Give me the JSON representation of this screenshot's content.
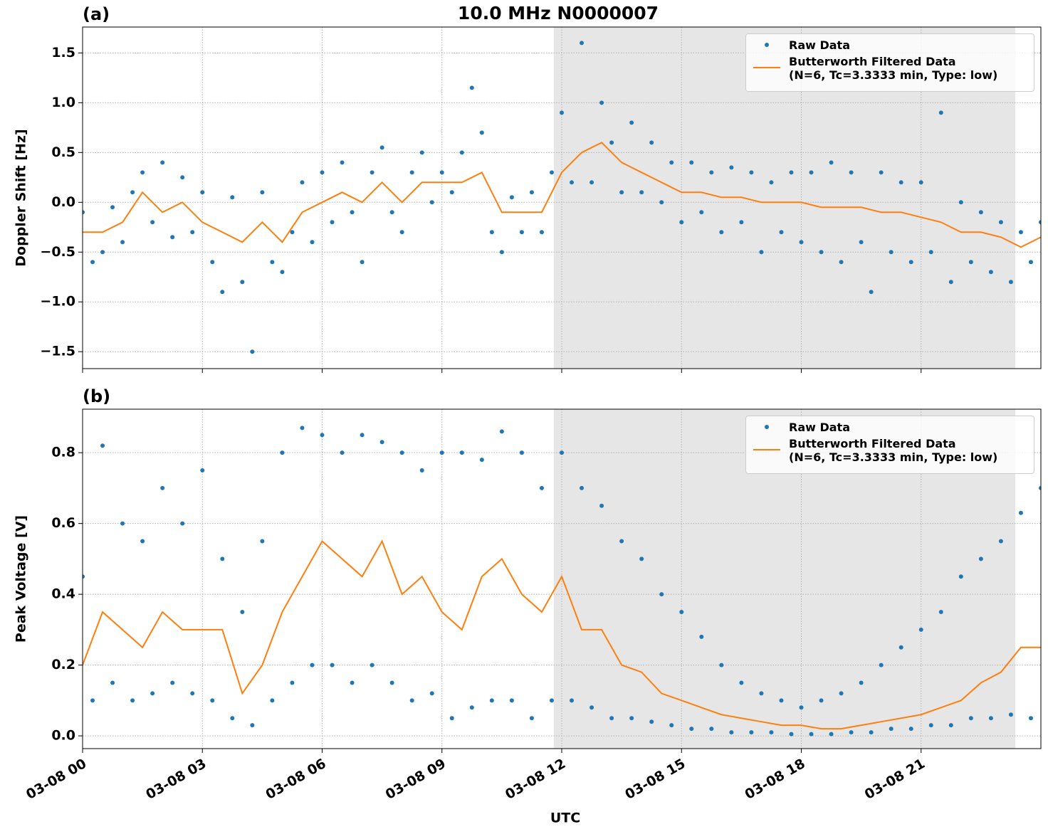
{
  "chart_data": [
    {
      "type": "line",
      "title": "10.0 MHz N0000007",
      "panel_label": "(a)",
      "ylabel": "Doppler Shift [Hz]",
      "xlim": [
        0,
        24
      ],
      "xticks": [
        0,
        3,
        6,
        9,
        12,
        15,
        18,
        21
      ],
      "ylim": [
        -1.67,
        1.76
      ],
      "yticks": [
        {
          "value": -1.5,
          "label": "−1.5"
        },
        {
          "value": -1.0,
          "label": "−1.0"
        },
        {
          "value": -0.5,
          "label": "−0.5"
        },
        {
          "value": 0.0,
          "label": "0.0"
        },
        {
          "value": 0.5,
          "label": "0.5"
        },
        {
          "value": 1.0,
          "label": "1.0"
        },
        {
          "value": 1.5,
          "label": "1.5"
        }
      ],
      "grid": true,
      "shade": [
        11.8,
        23.36
      ],
      "legend": "upper right",
      "series": [
        {
          "name": "Raw Data",
          "style": "points",
          "color": "#1f77b4",
          "x": [
            0,
            0.25,
            0.5,
            0.75,
            1,
            1.25,
            1.5,
            1.75,
            2,
            2.25,
            2.5,
            2.75,
            3,
            3.25,
            3.5,
            3.75,
            4,
            4.25,
            4.5,
            4.75,
            5,
            5.25,
            5.5,
            5.75,
            6,
            6.25,
            6.5,
            6.75,
            7,
            7.25,
            7.5,
            7.75,
            8,
            8.25,
            8.5,
            8.75,
            9,
            9.25,
            9.5,
            9.75,
            10,
            10.25,
            10.5,
            10.75,
            11,
            11.25,
            11.5,
            11.75,
            12,
            12.25,
            12.5,
            12.75,
            13,
            13.25,
            13.5,
            13.75,
            14,
            14.25,
            14.5,
            14.75,
            15,
            15.25,
            15.5,
            15.75,
            16,
            16.25,
            16.5,
            16.75,
            17,
            17.25,
            17.5,
            17.75,
            18,
            18.25,
            18.5,
            18.75,
            19,
            19.25,
            19.5,
            19.75,
            20,
            20.25,
            20.5,
            20.75,
            21,
            21.25,
            21.5,
            21.75,
            22,
            22.25,
            22.5,
            22.75,
            23,
            23.25,
            23.5,
            23.75,
            24
          ],
          "values": [
            -0.1,
            -0.6,
            -0.5,
            -0.05,
            -0.4,
            0.1,
            0.3,
            -0.2,
            0.4,
            -0.35,
            0.25,
            -0.3,
            0.1,
            -0.6,
            -0.9,
            0.05,
            -0.8,
            -1.5,
            0.1,
            -0.6,
            -0.7,
            -0.3,
            0.2,
            -0.4,
            0.3,
            -0.2,
            0.4,
            -0.1,
            -0.6,
            0.3,
            0.55,
            -0.1,
            -0.3,
            0.3,
            0.5,
            0.0,
            0.3,
            0.1,
            0.5,
            1.15,
            0.7,
            -0.3,
            -0.5,
            0.05,
            -0.3,
            0.1,
            -0.3,
            0.3,
            0.9,
            0.2,
            1.6,
            0.2,
            1.0,
            0.6,
            0.1,
            0.8,
            0.1,
            0.6,
            0.0,
            0.4,
            -0.2,
            0.4,
            -0.1,
            0.3,
            -0.3,
            0.35,
            -0.2,
            0.3,
            -0.5,
            0.2,
            -0.3,
            0.3,
            -0.4,
            0.3,
            -0.5,
            0.4,
            -0.6,
            0.3,
            -0.4,
            -0.9,
            0.3,
            -0.5,
            0.2,
            -0.6,
            0.2,
            -0.5,
            0.9,
            -0.8,
            0.0,
            -0.6,
            -0.1,
            -0.7,
            -0.2,
            -0.8,
            -0.3,
            -0.6,
            -0.2
          ]
        },
        {
          "name": "Butterworth Filtered Data\n(N=6, Tc=3.3333 min, Type: low)",
          "style": "line",
          "color": "#ff7f0e",
          "x": [
            0,
            0.5,
            1,
            1.5,
            2,
            2.5,
            3,
            3.5,
            4,
            4.5,
            5,
            5.5,
            6,
            6.5,
            7,
            7.5,
            8,
            8.5,
            9,
            9.5,
            10,
            10.5,
            11,
            11.5,
            12,
            12.5,
            13,
            13.5,
            14,
            14.5,
            15,
            15.5,
            16,
            16.5,
            17,
            17.5,
            18,
            18.5,
            19,
            19.5,
            20,
            20.5,
            21,
            21.5,
            22,
            22.5,
            23,
            23.5,
            24
          ],
          "values": [
            -0.3,
            -0.3,
            -0.2,
            0.1,
            -0.1,
            0.0,
            -0.2,
            -0.3,
            -0.4,
            -0.2,
            -0.4,
            -0.1,
            0.0,
            0.1,
            0.0,
            0.2,
            0.0,
            0.2,
            0.2,
            0.2,
            0.3,
            -0.1,
            -0.1,
            -0.1,
            0.3,
            0.5,
            0.6,
            0.4,
            0.3,
            0.2,
            0.1,
            0.1,
            0.05,
            0.05,
            0.0,
            0.0,
            0.0,
            -0.05,
            -0.05,
            -0.05,
            -0.1,
            -0.1,
            -0.15,
            -0.2,
            -0.3,
            -0.3,
            -0.35,
            -0.45,
            -0.35
          ]
        }
      ]
    },
    {
      "type": "line",
      "panel_label": "(b)",
      "ylabel": "Peak Voltage [V]",
      "xlabel": "UTC",
      "xlim": [
        0,
        24
      ],
      "xticks": [
        {
          "value": 0,
          "label": "03-08 00"
        },
        {
          "value": 3,
          "label": "03-08 03"
        },
        {
          "value": 6,
          "label": "03-08 06"
        },
        {
          "value": 9,
          "label": "03-08 09"
        },
        {
          "value": 12,
          "label": "03-08 12"
        },
        {
          "value": 15,
          "label": "03-08 15"
        },
        {
          "value": 18,
          "label": "03-08 18"
        },
        {
          "value": 21,
          "label": "03-08 21"
        }
      ],
      "ylim": [
        -0.036,
        0.923
      ],
      "yticks": [
        {
          "value": 0.0,
          "label": "0.0"
        },
        {
          "value": 0.2,
          "label": "0.2"
        },
        {
          "value": 0.4,
          "label": "0.4"
        },
        {
          "value": 0.6,
          "label": "0.6"
        },
        {
          "value": 0.8,
          "label": "0.8"
        }
      ],
      "grid": true,
      "shade": [
        11.8,
        23.36
      ],
      "legend": "upper right",
      "series": [
        {
          "name": "Raw Data",
          "style": "points",
          "color": "#1f77b4",
          "x": [
            0,
            0.25,
            0.5,
            0.75,
            1,
            1.25,
            1.5,
            1.75,
            2,
            2.25,
            2.5,
            2.75,
            3,
            3.25,
            3.5,
            3.75,
            4,
            4.25,
            4.5,
            4.75,
            5,
            5.25,
            5.5,
            5.75,
            6,
            6.25,
            6.5,
            6.75,
            7,
            7.25,
            7.5,
            7.75,
            8,
            8.25,
            8.5,
            8.75,
            9,
            9.25,
            9.5,
            9.75,
            10,
            10.25,
            10.5,
            10.75,
            11,
            11.25,
            11.5,
            11.75,
            12,
            12.25,
            12.5,
            12.75,
            13,
            13.25,
            13.5,
            13.75,
            14,
            14.25,
            14.5,
            14.75,
            15,
            15.25,
            15.5,
            15.75,
            16,
            16.25,
            16.5,
            16.75,
            17,
            17.25,
            17.5,
            17.75,
            18,
            18.25,
            18.5,
            18.75,
            19,
            19.25,
            19.5,
            19.75,
            20,
            20.25,
            20.5,
            20.75,
            21,
            21.25,
            21.5,
            21.75,
            22,
            22.25,
            22.5,
            22.75,
            23,
            23.25,
            23.5,
            23.75,
            24
          ],
          "values": [
            0.45,
            0.1,
            0.82,
            0.15,
            0.6,
            0.1,
            0.55,
            0.12,
            0.7,
            0.15,
            0.6,
            0.12,
            0.75,
            0.1,
            0.5,
            0.05,
            0.35,
            0.03,
            0.55,
            0.1,
            0.8,
            0.15,
            0.87,
            0.2,
            0.85,
            0.2,
            0.8,
            0.15,
            0.85,
            0.2,
            0.83,
            0.15,
            0.8,
            0.1,
            0.75,
            0.12,
            0.8,
            0.05,
            0.8,
            0.08,
            0.78,
            0.1,
            0.86,
            0.1,
            0.8,
            0.05,
            0.7,
            0.1,
            0.8,
            0.1,
            0.7,
            0.08,
            0.65,
            0.05,
            0.55,
            0.05,
            0.5,
            0.04,
            0.4,
            0.03,
            0.35,
            0.02,
            0.28,
            0.02,
            0.2,
            0.01,
            0.15,
            0.01,
            0.12,
            0.01,
            0.1,
            0.005,
            0.08,
            0.005,
            0.1,
            0.005,
            0.12,
            0.01,
            0.15,
            0.01,
            0.2,
            0.02,
            0.25,
            0.02,
            0.3,
            0.03,
            0.35,
            0.03,
            0.45,
            0.05,
            0.5,
            0.05,
            0.55,
            0.06,
            0.63,
            0.05,
            0.7
          ]
        },
        {
          "name": "Butterworth Filtered Data\n(N=6, Tc=3.3333 min, Type: low)",
          "style": "line",
          "color": "#ff7f0e",
          "x": [
            0,
            0.5,
            1,
            1.5,
            2,
            2.5,
            3,
            3.5,
            4,
            4.5,
            5,
            5.5,
            6,
            6.5,
            7,
            7.5,
            8,
            8.5,
            9,
            9.5,
            10,
            10.5,
            11,
            11.5,
            12,
            12.5,
            13,
            13.5,
            14,
            14.5,
            15,
            15.5,
            16,
            16.5,
            17,
            17.5,
            18,
            18.5,
            19,
            19.5,
            20,
            20.5,
            21,
            21.5,
            22,
            22.5,
            23,
            23.5,
            24
          ],
          "values": [
            0.2,
            0.35,
            0.3,
            0.25,
            0.35,
            0.3,
            0.3,
            0.3,
            0.12,
            0.2,
            0.35,
            0.45,
            0.55,
            0.5,
            0.45,
            0.55,
            0.4,
            0.45,
            0.35,
            0.3,
            0.45,
            0.5,
            0.4,
            0.35,
            0.45,
            0.3,
            0.3,
            0.2,
            0.18,
            0.12,
            0.1,
            0.08,
            0.06,
            0.05,
            0.04,
            0.03,
            0.03,
            0.02,
            0.02,
            0.03,
            0.04,
            0.05,
            0.06,
            0.08,
            0.1,
            0.15,
            0.18,
            0.25,
            0.25
          ]
        }
      ]
    }
  ]
}
